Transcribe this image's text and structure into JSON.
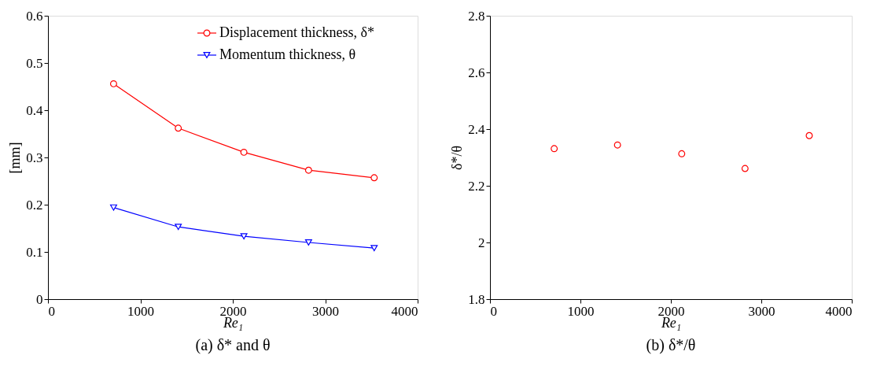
{
  "chart_data": [
    {
      "type": "line",
      "title": "(a) δ* and θ",
      "xlabel": "Re₁",
      "ylabel": "[mm]",
      "x": [
        710,
        1410,
        2120,
        2820,
        3530
      ],
      "series": [
        {
          "name": "Displacement thickness, δ*",
          "color": "#ff0000",
          "marker": "circle",
          "values": [
            0.456,
            0.362,
            0.311,
            0.273,
            0.257
          ]
        },
        {
          "name": "Momentum thickness, θ",
          "color": "#0000ff",
          "marker": "triangle",
          "values": [
            0.194,
            0.153,
            0.133,
            0.12,
            0.108
          ]
        }
      ],
      "xlim": [
        0,
        4000
      ],
      "xticks": [
        0,
        1000,
        2000,
        3000,
        4000
      ],
      "ylim": [
        0,
        0.6
      ],
      "yticks": [
        0,
        0.1,
        0.2,
        0.3,
        0.4,
        0.5,
        0.6
      ],
      "legend": "top right",
      "grid": false
    },
    {
      "type": "scatter",
      "title": "(b) δ*/θ",
      "xlabel": "Re₁",
      "ylabel": "δ*/θ",
      "x": [
        710,
        1410,
        2120,
        2820,
        3530
      ],
      "series": [
        {
          "color": "#ff0000",
          "marker": "circle",
          "values": [
            2.331,
            2.344,
            2.313,
            2.261,
            2.377
          ]
        }
      ],
      "xlim": [
        0,
        4000
      ],
      "xticks": [
        0,
        1000,
        2000,
        3000,
        4000
      ],
      "ylim": [
        1.8,
        2.8
      ],
      "yticks": [
        1.8,
        2.0,
        2.2,
        2.4,
        2.6,
        2.8
      ],
      "legend": false,
      "grid": false
    }
  ]
}
